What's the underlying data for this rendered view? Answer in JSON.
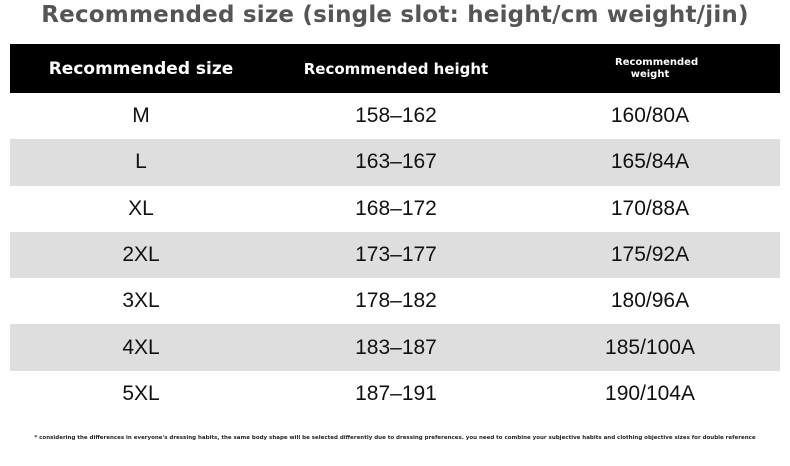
{
  "title": "Recommended size (single slot: height/cm weight/jin)",
  "table": {
    "header": [
      "Recommended size",
      "Recommended height",
      "Recommended weight"
    ],
    "rows": [
      [
        "M",
        "158–162",
        "160/80A"
      ],
      [
        "L",
        "163–167",
        "165/84A"
      ],
      [
        "XL",
        "168–172",
        "170/88A"
      ],
      [
        "2XL",
        "173–177",
        "175/92A"
      ],
      [
        "3XL",
        "178–182",
        "180/96A"
      ],
      [
        "4XL",
        "183–187",
        "185/100A"
      ],
      [
        "5XL",
        "187–191",
        "190/104A"
      ]
    ]
  },
  "footnote": "* considering the differences in everyone's dressing habits, the same body shape will be selected differently due to dressing preferences. you need to combine your subjective habits and clothing objective sizes for double reference"
}
